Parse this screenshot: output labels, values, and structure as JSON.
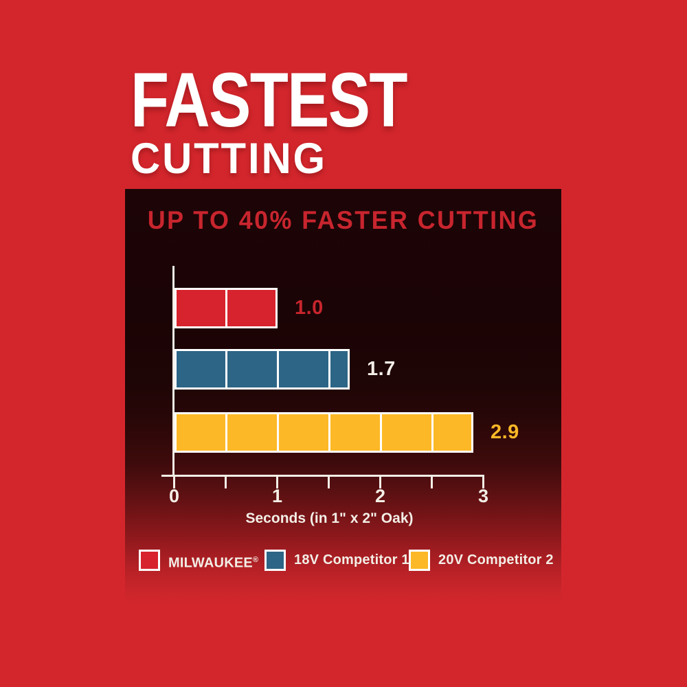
{
  "headline": {
    "line1": "FASTEST",
    "line2": "CUTTING"
  },
  "chart_data": {
    "type": "bar",
    "orientation": "horizontal",
    "title": "UP TO 40% FASTER CUTTING",
    "xlabel": "Seconds (in 1\" x 2\" Oak)",
    "xlim": [
      0,
      3
    ],
    "x_tick_step": 0.5,
    "x_label_step": 1,
    "x_tick_labels": [
      "0",
      "1",
      "2",
      "3"
    ],
    "segment_unit": 0.5,
    "grid": false,
    "legend_position": "bottom",
    "series": [
      {
        "name": "MILWAUKEE®",
        "value": 1.0,
        "value_label": "1.0",
        "bar_color": "#d7232d",
        "value_color": "#c8252e"
      },
      {
        "name": "18V Competitor 1",
        "value": 1.7,
        "value_label": "1.7",
        "bar_color": "#2d6586",
        "value_color": "#f3eee6"
      },
      {
        "name": "20V Competitor 2",
        "value": 2.9,
        "value_label": "2.9",
        "bar_color": "#fcb826",
        "value_color": "#fcb826"
      }
    ],
    "legend": [
      {
        "label": "MILWAUKEE®",
        "color": "#d7232d"
      },
      {
        "label": "18V Competitor 1",
        "color": "#2d6586"
      },
      {
        "label": "20V Competitor 2",
        "color": "#fcb826"
      }
    ],
    "colors": {
      "background": "#d3262c",
      "panel_top": "#1d0507",
      "axis": "#f3eee6",
      "title": "#c8252e",
      "headline_text": "#ffffff"
    }
  }
}
